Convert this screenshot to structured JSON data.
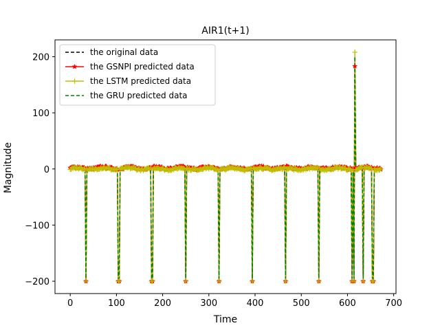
{
  "chart_data": {
    "type": "line",
    "title": "AIR1(t+1)",
    "xlabel": "Time",
    "ylabel": "Magnitude",
    "xlim": [
      -33,
      705
    ],
    "ylim": [
      -222,
      230
    ],
    "x_ticks": [
      0,
      100,
      200,
      300,
      400,
      500,
      600,
      700
    ],
    "y_ticks": [
      -200,
      -100,
      0,
      100,
      200
    ],
    "grid": false,
    "legend_position": "top-left",
    "baseline_level": 1,
    "spike_times": [
      34,
      105,
      177,
      250,
      322,
      394,
      466,
      538,
      610,
      614,
      634,
      655
    ],
    "spike_value": -200,
    "peak_time": 616,
    "peak_values": {
      "original": 200,
      "gsnpi": 183,
      "lstm": 208,
      "gru": 200
    },
    "x_range": [
      0,
      672
    ],
    "series": [
      {
        "name": "the original data",
        "color": "#000000",
        "style": "dashed",
        "marker": "none"
      },
      {
        "name": "the GSNPI predicted data",
        "color": "#ff0000",
        "style": "solid",
        "marker": "star"
      },
      {
        "name": "the LSTM predicted data",
        "color": "#bfbf00",
        "style": "solid",
        "marker": "plus"
      },
      {
        "name": "the GRU predicted data",
        "color": "#008000",
        "style": "dashed",
        "marker": "none"
      }
    ]
  }
}
